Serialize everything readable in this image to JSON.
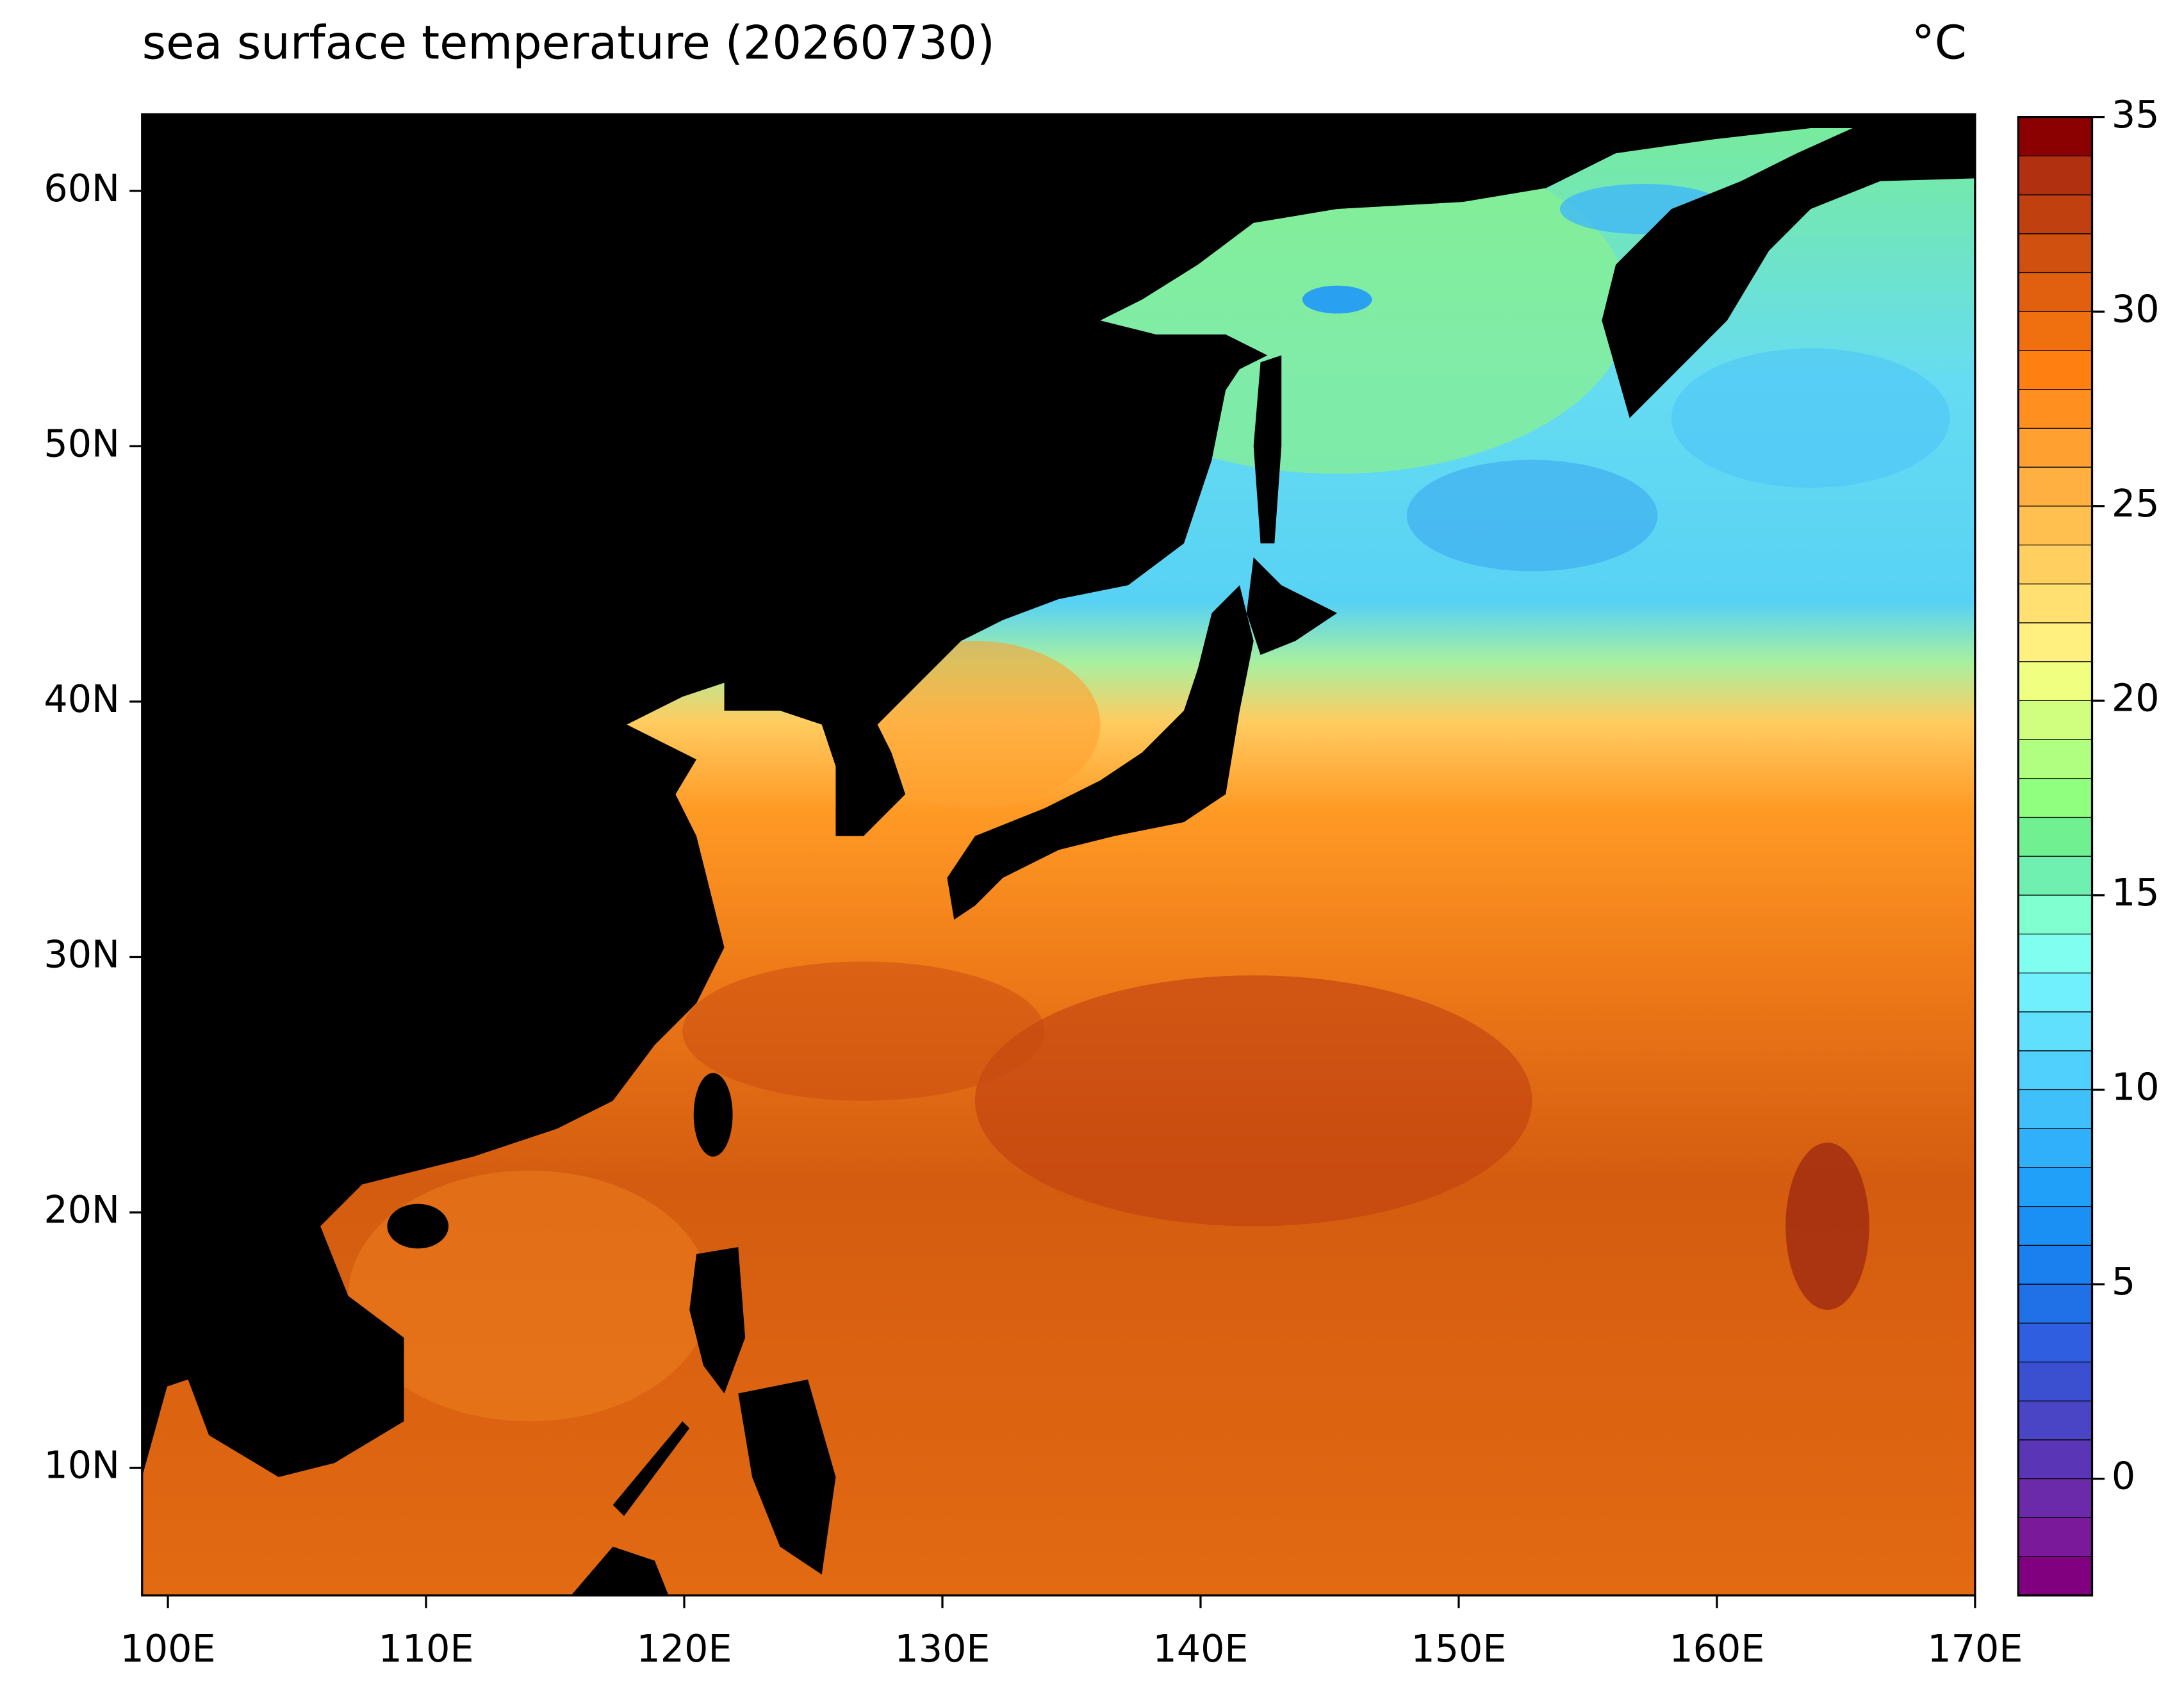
{
  "chart_data": {
    "type": "map",
    "title": "sea surface temperature (20260730)",
    "unit": "°C",
    "xlim": [
      99,
      170
    ],
    "ylim": [
      5,
      63
    ],
    "xticks": [
      {
        "value": 100,
        "label": "100E"
      },
      {
        "value": 110,
        "label": "110E"
      },
      {
        "value": 120,
        "label": "120E"
      },
      {
        "value": 130,
        "label": "130E"
      },
      {
        "value": 140,
        "label": "140E"
      },
      {
        "value": 150,
        "label": "150E"
      },
      {
        "value": 160,
        "label": "160E"
      },
      {
        "value": 170,
        "label": "170E"
      }
    ],
    "yticks": [
      {
        "value": 10,
        "label": "10N"
      },
      {
        "value": 20,
        "label": "20N"
      },
      {
        "value": 30,
        "label": "30N"
      },
      {
        "value": 40,
        "label": "40N"
      },
      {
        "value": 50,
        "label": "50N"
      },
      {
        "value": 60,
        "label": "60N"
      }
    ],
    "colorbar": {
      "lim": [
        -3,
        35
      ],
      "ticks": [
        0,
        5,
        10,
        15,
        20,
        25,
        30,
        35
      ],
      "colors": [
        "#800080",
        "#7a1a9a",
        "#6a2aaa",
        "#5a35b5",
        "#4a45c5",
        "#3a50d0",
        "#2f5fe0",
        "#2070e8",
        "#1a80f0",
        "#1a90f5",
        "#20a0f8",
        "#30b0fa",
        "#40c0fb",
        "#50d0fc",
        "#60e0fd",
        "#70f0fd",
        "#80fff0",
        "#80ffd0",
        "#70f0b0",
        "#70f090",
        "#90ff80",
        "#b0ff80",
        "#d0ff80",
        "#f0ff80",
        "#fff080",
        "#ffe070",
        "#ffd060",
        "#ffc050",
        "#ffb040",
        "#ffa030",
        "#ff9020",
        "#ff8010",
        "#f07010",
        "#e06010",
        "#d05010",
        "#c04010",
        "#b03010",
        "#8b0000"
      ]
    }
  }
}
